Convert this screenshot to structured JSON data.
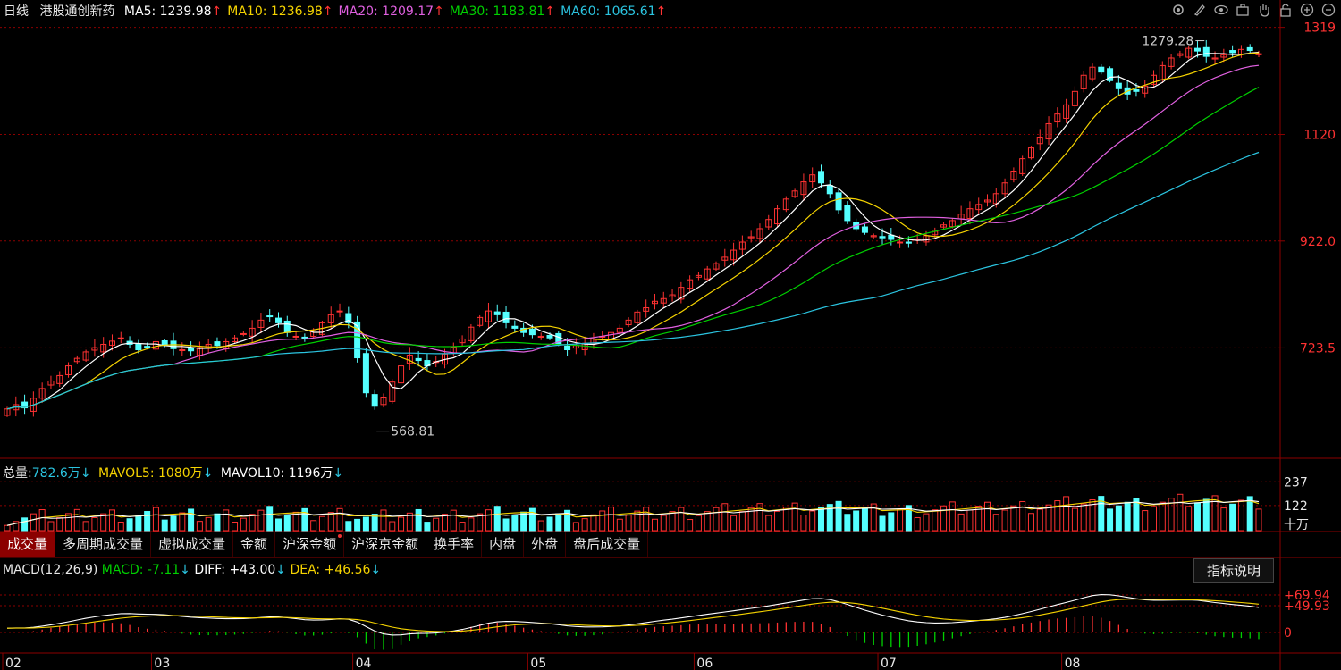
{
  "header": {
    "period": "日线",
    "name": "港股通创新药",
    "ma": [
      {
        "label": "MA5:",
        "value": "1239.98",
        "arrow": "↑",
        "color": "#ffffff"
      },
      {
        "label": "MA10:",
        "value": "1236.98",
        "arrow": "↑",
        "color": "#f5d300"
      },
      {
        "label": "MA20:",
        "value": "1209.17",
        "arrow": "↑",
        "color": "#e060e0"
      },
      {
        "label": "MA30:",
        "value": "1183.81",
        "arrow": "↑",
        "color": "#00d000"
      },
      {
        "label": "MA60:",
        "value": "1065.61",
        "arrow": "↑",
        "color": "#2bc4e0"
      }
    ]
  },
  "toolbar": [
    "settings-icon",
    "pen-icon",
    "eye-icon",
    "briefcase-icon",
    "hand-icon",
    "lock-icon",
    "zoom-in-icon",
    "zoom-out-icon"
  ],
  "price_axis": [
    "1319",
    "1120",
    "922.0",
    "723.5"
  ],
  "annotations": {
    "high": "1279.28",
    "low": "568.81"
  },
  "volume_header": {
    "total_label": "总量:",
    "total_value": "782.6万",
    "total_arrow": "↓",
    "mavol5_label": "MAVOL5:",
    "mavol5_value": "1080万",
    "mavol5_arrow": "↓",
    "mavol10_label": "MAVOL10:",
    "mavol10_value": "1196万",
    "mavol10_arrow": "↓"
  },
  "volume_axis": [
    "237",
    "122",
    "十万"
  ],
  "tabs": [
    "成交量",
    "多周期成交量",
    "虚拟成交量",
    "金额",
    "沪深金额",
    "沪深京金额",
    "换手率",
    "内盘",
    "外盘",
    "盘后成交量"
  ],
  "macd_header": {
    "label": "MACD(12,26,9)",
    "macd_label": "MACD:",
    "macd_value": "-7.11",
    "macd_arrow": "↓",
    "diff_label": "DIFF:",
    "diff_value": "+43.00",
    "diff_arrow": "↓",
    "dea_label": "DEA:",
    "dea_value": "+46.56",
    "dea_arrow": "↓"
  },
  "macd_axis": [
    "+69.94",
    "+49.93",
    "0"
  ],
  "help_button": "指标说明",
  "x_axis": [
    "02",
    "03",
    "04",
    "05",
    "06",
    "07",
    "08"
  ],
  "colors": {
    "up": "#ff3232",
    "down": "#54ffff",
    "grid": "#8b0000",
    "ma5": "#ffffff",
    "ma10": "#f5d300",
    "ma20": "#e060e0",
    "ma30": "#00d000",
    "ma60": "#2bc4e0"
  },
  "chart_data": {
    "type": "candlestick",
    "x_months": [
      "02",
      "03",
      "04",
      "05",
      "06",
      "07",
      "08"
    ],
    "ylim": [
      520,
      1330
    ],
    "close_series": [
      610,
      618,
      612,
      630,
      648,
      662,
      672,
      690,
      704,
      716,
      724,
      730,
      736,
      742,
      730,
      720,
      726,
      735,
      728,
      722,
      720,
      718,
      724,
      730,
      728,
      735,
      742,
      750,
      760,
      775,
      782,
      770,
      752,
      745,
      740,
      755,
      770,
      785,
      792,
      770,
      705,
      640,
      615,
      632,
      660,
      690,
      710,
      700,
      690,
      698,
      712,
      725,
      740,
      762,
      780,
      792,
      785,
      770,
      760,
      752,
      748,
      745,
      742,
      730,
      720,
      728,
      732,
      740,
      745,
      752,
      760,
      775,
      790,
      798,
      810,
      815,
      822,
      836,
      850,
      858,
      870,
      880,
      892,
      905,
      920,
      930,
      945,
      962,
      982,
      1000,
      1015,
      1032,
      1045,
      1030,
      1010,
      980,
      960,
      945,
      938,
      932,
      928,
      925,
      920,
      918,
      925,
      932,
      940,
      952,
      960,
      972,
      982,
      990,
      998,
      1010,
      1030,
      1052,
      1075,
      1095,
      1115,
      1140,
      1158,
      1175,
      1200,
      1230,
      1245,
      1236,
      1220,
      1205,
      1195,
      1200,
      1210,
      1230,
      1248,
      1262,
      1270,
      1280,
      1275,
      1265,
      1262,
      1268,
      1272,
      1278,
      1276,
      1270
    ],
    "ma_latest": {
      "MA5": 1239.98,
      "MA10": 1236.98,
      "MA20": 1209.17,
      "MA30": 1183.81,
      "MA60": 1065.61
    },
    "high": 1279.28,
    "low": 568.81,
    "volume": {
      "total": "782.6万",
      "MAVOL5": "1080万",
      "MAVOL10": "1196万",
      "ylim": [
        0,
        260
      ]
    },
    "macd": {
      "MACD": -7.11,
      "DIFF": 43.0,
      "DEA": 46.56,
      "ticks": [
        69.94,
        49.93,
        0
      ]
    }
  }
}
